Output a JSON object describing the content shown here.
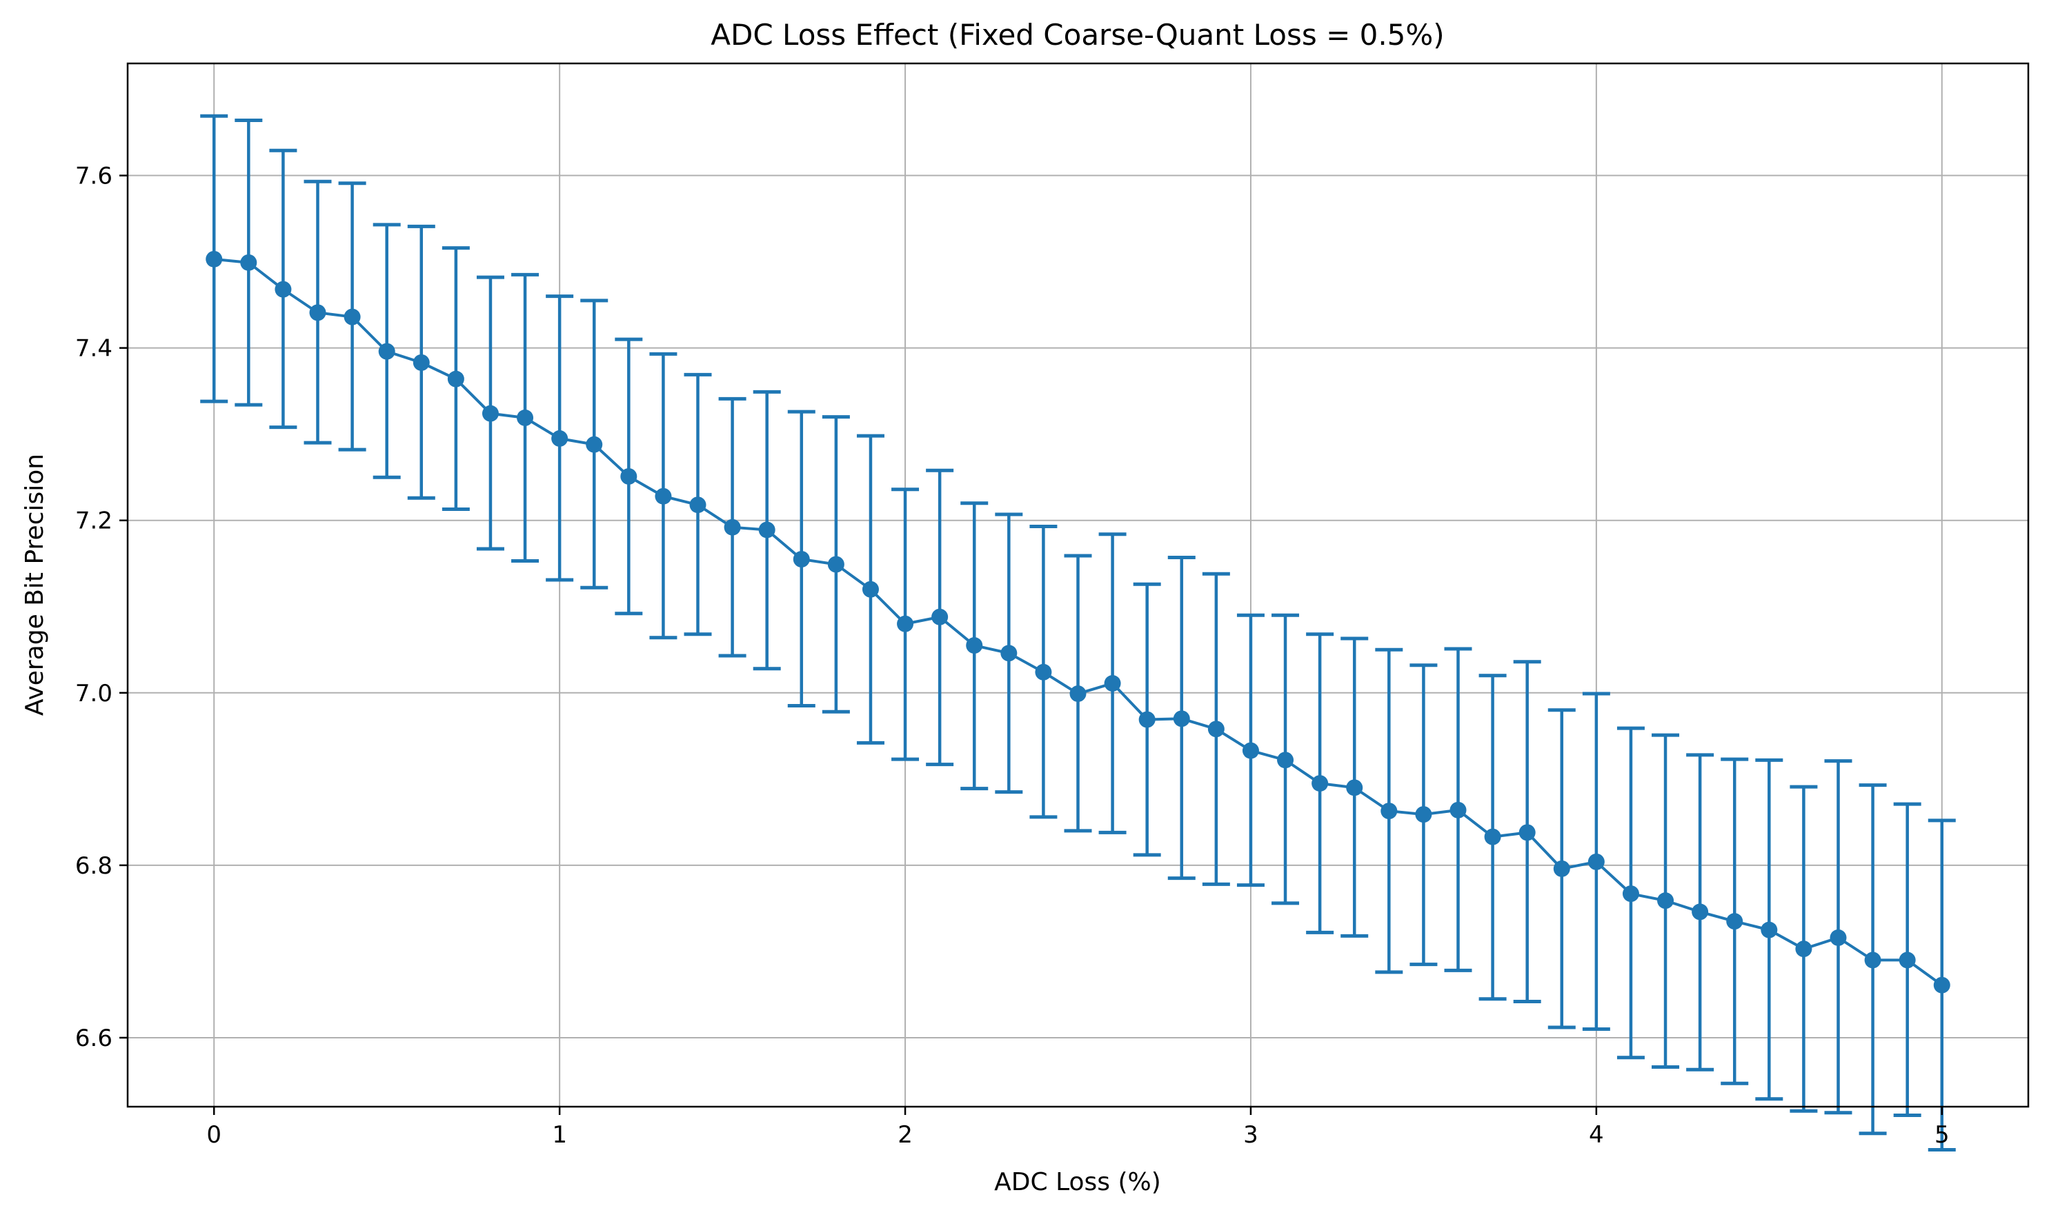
{
  "chart_data": {
    "type": "line",
    "title": "ADC Loss Effect (Fixed Coarse-Quant Loss = 0.5%)",
    "xlabel": "ADC Loss (%)",
    "ylabel": "Average Bit Precision",
    "xlim": [
      -0.25,
      5.25
    ],
    "ylim": [
      6.52,
      7.73
    ],
    "x_ticks": [
      0,
      1,
      2,
      3,
      4,
      5
    ],
    "x_tick_labels": [
      "0",
      "1",
      "2",
      "3",
      "4",
      "5"
    ],
    "y_ticks": [
      6.6,
      6.8,
      7.0,
      7.2,
      7.4,
      7.6
    ],
    "y_tick_labels": [
      "6.6",
      "6.8",
      "7.0",
      "7.2",
      "7.4",
      "7.6"
    ],
    "grid": true,
    "legend": "none",
    "series": [
      {
        "color": "#1f77b4",
        "x": [
          0.0,
          0.1,
          0.2,
          0.3,
          0.4,
          0.5,
          0.6,
          0.7,
          0.8,
          0.9,
          1.0,
          1.1,
          1.2,
          1.3,
          1.4,
          1.5,
          1.6,
          1.7,
          1.8,
          1.9,
          2.0,
          2.1,
          2.2,
          2.3,
          2.4,
          2.5,
          2.6,
          2.7,
          2.8,
          2.9,
          3.0,
          3.1,
          3.2,
          3.3,
          3.4,
          3.5,
          3.6,
          3.7,
          3.8,
          3.9,
          4.0,
          4.1,
          4.2,
          4.3,
          4.4,
          4.5,
          4.6,
          4.7,
          4.8,
          4.9,
          5.0
        ],
        "y": [
          7.503,
          7.499,
          7.468,
          7.441,
          7.436,
          7.396,
          7.383,
          7.364,
          7.324,
          7.319,
          7.295,
          7.288,
          7.251,
          7.228,
          7.218,
          7.192,
          7.189,
          7.155,
          7.149,
          7.12,
          7.08,
          7.088,
          7.055,
          7.046,
          7.024,
          6.999,
          7.011,
          6.969,
          6.97,
          6.958,
          6.933,
          6.922,
          6.895,
          6.89,
          6.863,
          6.859,
          6.864,
          6.833,
          6.838,
          6.796,
          6.804,
          6.767,
          6.759,
          6.746,
          6.735,
          6.725,
          6.703,
          6.716,
          6.69,
          6.69,
          6.661
        ],
        "error_low": [
          7.338,
          7.334,
          7.308,
          7.29,
          7.282,
          7.25,
          7.226,
          7.213,
          7.167,
          7.153,
          7.131,
          7.122,
          7.092,
          7.064,
          7.068,
          7.043,
          7.028,
          6.985,
          6.978,
          6.942,
          6.923,
          6.917,
          6.889,
          6.885,
          6.856,
          6.84,
          6.838,
          6.812,
          6.785,
          6.778,
          6.777,
          6.756,
          6.722,
          6.718,
          6.676,
          6.685,
          6.678,
          6.645,
          6.642,
          6.612,
          6.61,
          6.577,
          6.566,
          6.563,
          6.547,
          6.529,
          6.515,
          6.513,
          6.489,
          6.51,
          6.47
        ],
        "error_high": [
          7.669,
          7.664,
          7.629,
          7.593,
          7.591,
          7.543,
          7.541,
          7.516,
          7.482,
          7.485,
          7.46,
          7.455,
          7.41,
          7.393,
          7.369,
          7.341,
          7.349,
          7.326,
          7.32,
          7.298,
          7.236,
          7.258,
          7.22,
          7.207,
          7.193,
          7.159,
          7.184,
          7.126,
          7.157,
          7.138,
          7.09,
          7.09,
          7.068,
          7.063,
          7.05,
          7.032,
          7.051,
          7.02,
          7.036,
          6.98,
          6.999,
          6.959,
          6.951,
          6.928,
          6.923,
          6.922,
          6.891,
          6.921,
          6.893,
          6.871,
          6.852
        ]
      }
    ]
  }
}
